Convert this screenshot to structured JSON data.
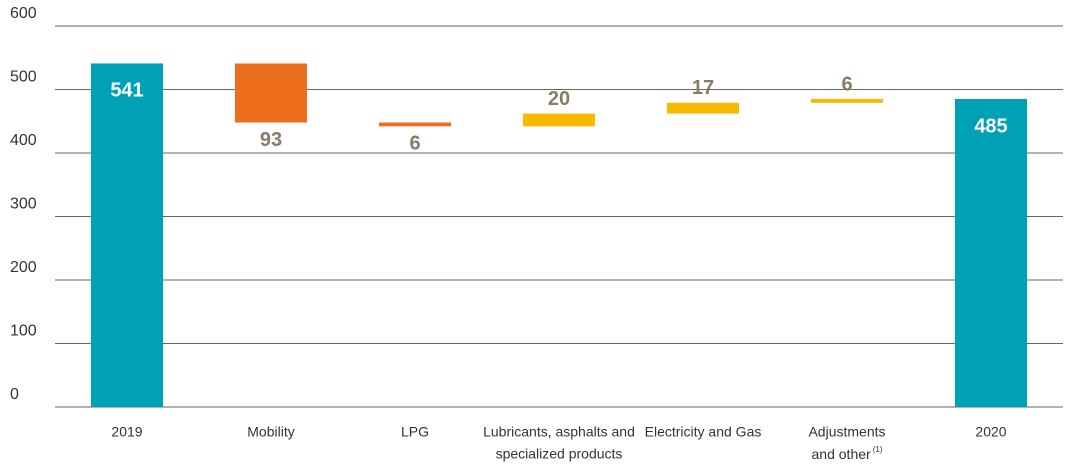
{
  "chart_data": {
    "type": "waterfall",
    "categories": [
      [
        "2019"
      ],
      [
        "Mobility"
      ],
      [
        "LPG"
      ],
      [
        "Lubricants, asphalts and",
        "specialized products"
      ],
      [
        "Electricity and Gas"
      ],
      [
        "Adjustments",
        "and other"
      ],
      [
        "2020"
      ]
    ],
    "category_notes": [
      null,
      null,
      null,
      null,
      null,
      "(1)",
      null
    ],
    "measure": [
      "absolute",
      "relative",
      "relative",
      "relative",
      "relative",
      "relative",
      "total"
    ],
    "values": [
      541,
      -93,
      -6,
      20,
      17,
      6,
      485
    ],
    "value_labels": [
      "541",
      "93",
      "6",
      "20",
      "17",
      "6",
      "485"
    ],
    "colors": {
      "total": "#00a1b4",
      "decrease": "#ec6e1c",
      "increase": "#f9b900"
    },
    "ylim": [
      0,
      600
    ],
    "yticks": [
      0,
      100,
      200,
      300,
      400,
      500,
      600
    ],
    "grid": true
  }
}
